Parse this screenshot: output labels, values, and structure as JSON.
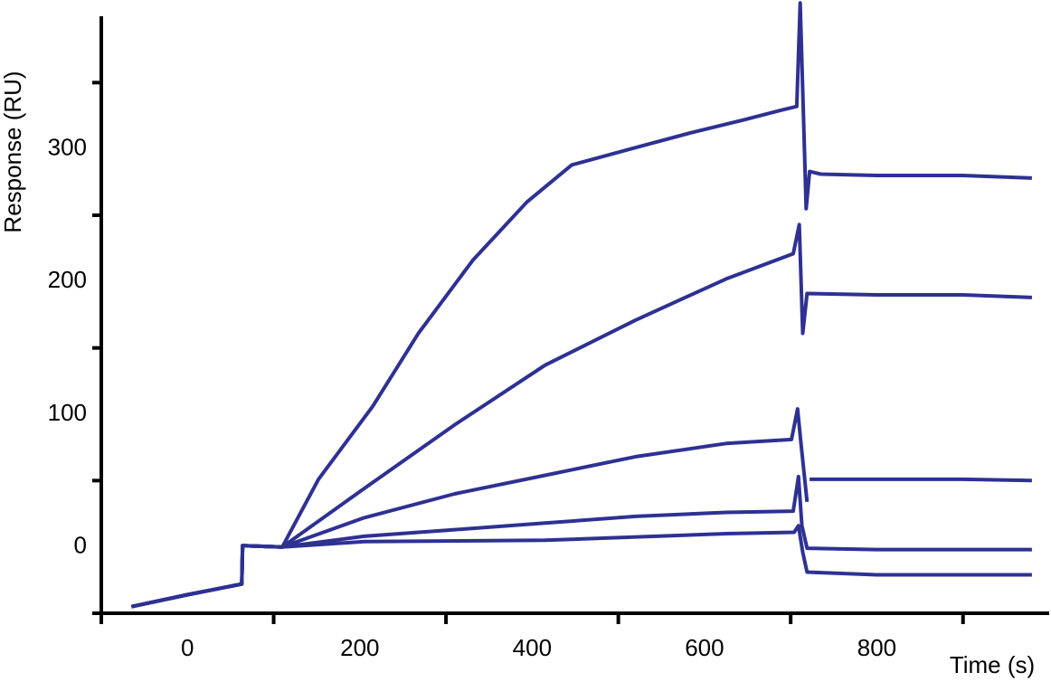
{
  "chart_data": {
    "type": "line",
    "xlabel": "Time (s)",
    "ylabel": "Response (RU)",
    "xlim": [
      -100,
      1000
    ],
    "ylim": [
      -50,
      400
    ],
    "xticks": [
      0,
      200,
      400,
      600,
      800
    ],
    "xminorticks": [
      -100,
      100,
      300,
      500,
      700,
      900
    ],
    "yticks": [
      0,
      100,
      200,
      300
    ],
    "yminorticks": [
      -50,
      50,
      150,
      250,
      350
    ],
    "color": "#2e3192",
    "series": [
      {
        "x": [
          -65,
          0,
          63,
          64,
          110,
          152,
          215,
          268,
          331,
          394,
          446,
          520,
          583,
          646,
          688,
          707,
          711,
          718,
          722,
          735,
          800,
          900,
          980
        ],
        "values": [
          -45,
          -36,
          -28,
          1,
          0,
          51,
          106,
          161,
          216,
          260,
          288,
          301,
          312,
          322,
          329,
          332,
          410,
          255,
          283,
          281,
          280,
          280,
          278
        ]
      },
      {
        "x": [
          -65,
          0,
          63,
          64,
          110,
          205,
          310,
          415,
          520,
          625,
          703,
          710,
          714,
          719,
          800,
          900,
          980
        ],
        "values": [
          -45,
          -36,
          -28,
          1,
          0,
          44,
          92,
          137,
          171,
          202,
          221,
          243,
          161,
          191,
          190,
          190,
          188
        ]
      },
      {
        "x": [
          -65,
          0,
          63,
          64,
          110,
          205,
          310,
          415,
          520,
          625,
          701,
          708,
          712,
          719,
          720,
          722,
          800,
          900,
          980
        ],
        "values": [
          -45,
          -36,
          -28,
          1,
          0,
          22,
          40,
          54,
          68,
          78,
          81,
          104,
          78,
          34,
          null,
          51,
          51,
          51,
          50
        ]
      },
      {
        "x": [
          -65,
          0,
          63,
          64,
          110,
          205,
          310,
          415,
          520,
          625,
          703,
          709,
          713,
          719,
          800,
          900,
          980
        ],
        "values": [
          -45,
          -36,
          -28,
          1,
          0,
          8,
          13,
          18,
          23,
          26,
          27,
          53,
          16,
          -1,
          -2,
          -2,
          -2
        ]
      },
      {
        "x": [
          -65,
          0,
          63,
          64,
          110,
          205,
          415,
          625,
          704,
          709,
          714,
          719,
          800,
          900,
          980
        ],
        "values": [
          -45,
          -36,
          -28,
          1,
          0,
          4,
          5,
          10,
          11,
          16,
          -4,
          -19,
          -21,
          -21,
          -21
        ]
      }
    ]
  }
}
